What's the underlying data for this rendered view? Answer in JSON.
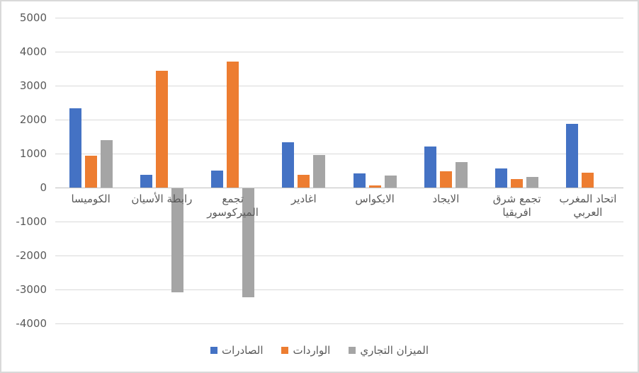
{
  "chart_data": {
    "type": "bar",
    "title": "",
    "xlabel": "",
    "ylabel": "",
    "categories": [
      "الكوميسا",
      "رابطة الأسيان",
      "تجمع الميركوسور",
      "اغادير",
      "الايكواس",
      "الايجاد",
      "تجمع شرق افريقيا",
      "اتحاد المغرب العربي"
    ],
    "series": [
      {
        "name": "الصادرات",
        "color": "#4472C4",
        "values": [
          2330,
          380,
          500,
          1330,
          410,
          1210,
          555,
          1875
        ]
      },
      {
        "name": "الواردات",
        "color": "#ED7D31",
        "values": [
          940,
          3440,
          3700,
          365,
          55,
          470,
          240,
          430
        ]
      },
      {
        "name": "الميزان التجاري",
        "color": "#A5A5A5",
        "values": [
          1400,
          -3060,
          -3200,
          960,
          350,
          745,
          310,
          null
        ]
      }
    ],
    "ylim": [
      -4000,
      5000
    ],
    "ytick_step": 1000,
    "ytick_labels": [
      "5000",
      "4000",
      "3000",
      "2000",
      "1000",
      "0",
      "-1000",
      "-2000",
      "-3000",
      "-4000"
    ],
    "grid": true,
    "legend_position": "bottom"
  },
  "colors": {
    "background": "#FFFFFF",
    "frame_border": "#D9D9D9",
    "gridline": "#D9D9D9",
    "axis_line": "#BFBFBF",
    "tick_text": "#595959"
  }
}
